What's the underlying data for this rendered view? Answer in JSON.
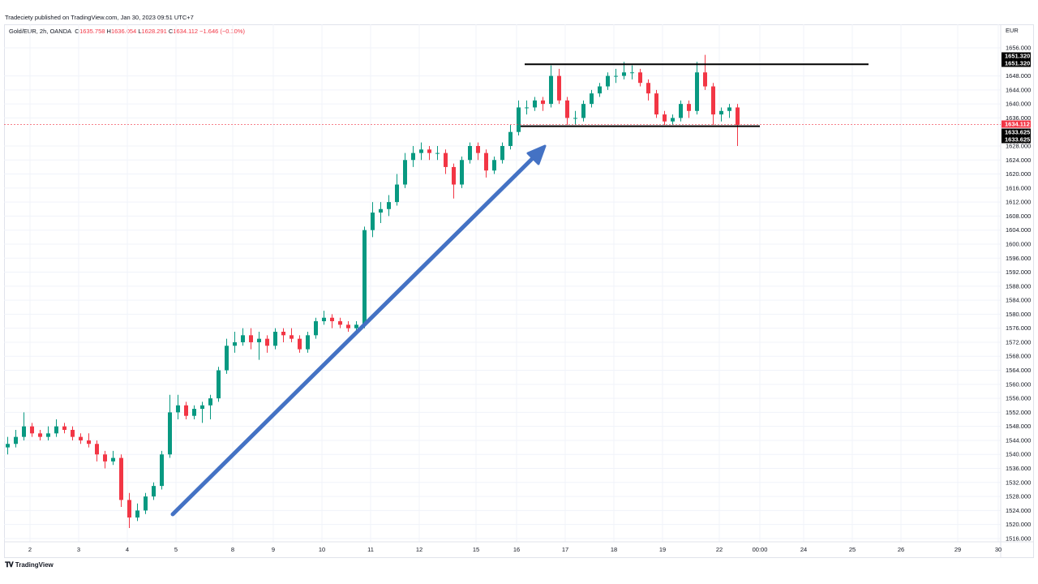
{
  "published": "Tradeciety published on TradingView.com, Jan 30, 2023 09:51 UTC+7",
  "legend": {
    "symbol": "Gold/EUR, 2h, OANDA",
    "o_label": "O",
    "o": "1635.758",
    "h_label": "H",
    "h": "1636.054",
    "l_label": "L",
    "l": "1628.291",
    "c_label": "C",
    "c": "1634.112",
    "change": "−1.646 (−0.10%)"
  },
  "footer": {
    "brand": "TradingView",
    "logo": "TV"
  },
  "chart_data": {
    "type": "candlestick",
    "currency": "EUR",
    "ylim": [
      1514,
      1659
    ],
    "y_ticks": [
      1516,
      1520,
      1524,
      1528,
      1532,
      1536,
      1540,
      1544,
      1548,
      1552,
      1556,
      1560,
      1564,
      1568,
      1572,
      1576,
      1580,
      1584,
      1588,
      1592,
      1596,
      1600,
      1604,
      1608,
      1612,
      1616,
      1620,
      1624,
      1628,
      1636,
      1640,
      1644,
      1648,
      1656
    ],
    "x_ticks": [
      "2",
      "3",
      "4",
      "5",
      "8",
      "9",
      "10",
      "11",
      "12",
      "15",
      "16",
      "17",
      "18",
      "19",
      "22",
      "00:00",
      "24",
      "25",
      "26",
      "29",
      "30"
    ],
    "colors": {
      "up": "#089981",
      "down": "#f23645",
      "arrow": "#4472c4",
      "level": "#000000"
    },
    "current_price": "1634.112",
    "levels": [
      {
        "label": "1651.320",
        "price": 1651.32
      },
      {
        "label": "1633.625",
        "price": 1633.625
      }
    ],
    "annotation": "uptrend-arrow",
    "candles": [
      [
        1542,
        1545,
        1540,
        1543
      ],
      [
        1543,
        1547,
        1542,
        1545
      ],
      [
        1545,
        1552,
        1544,
        1548
      ],
      [
        1548,
        1549,
        1545,
        1546
      ],
      [
        1546,
        1547,
        1544,
        1545
      ],
      [
        1545,
        1548,
        1544,
        1546
      ],
      [
        1546,
        1550,
        1545,
        1548
      ],
      [
        1548,
        1549,
        1546,
        1547
      ],
      [
        1547,
        1548,
        1544,
        1545
      ],
      [
        1545,
        1546,
        1543,
        1544
      ],
      [
        1544,
        1546,
        1542,
        1543
      ],
      [
        1543,
        1544,
        1538,
        1540
      ],
      [
        1540,
        1541,
        1536,
        1538
      ],
      [
        1538,
        1541,
        1537,
        1539
      ],
      [
        1539,
        1540,
        1525,
        1527
      ],
      [
        1527,
        1529,
        1519,
        1522
      ],
      [
        1522,
        1526,
        1521,
        1524
      ],
      [
        1524,
        1529,
        1523,
        1528
      ],
      [
        1528,
        1532,
        1527,
        1531
      ],
      [
        1531,
        1541,
        1530,
        1540
      ],
      [
        1540,
        1557,
        1539,
        1552
      ],
      [
        1552,
        1557,
        1550,
        1554
      ],
      [
        1554,
        1555,
        1550,
        1551
      ],
      [
        1551,
        1554,
        1550,
        1553
      ],
      [
        1553,
        1555,
        1549,
        1554
      ],
      [
        1554,
        1557,
        1550,
        1556
      ],
      [
        1556,
        1565,
        1555,
        1564
      ],
      [
        1564,
        1573,
        1563,
        1571
      ],
      [
        1571,
        1575,
        1569,
        1572
      ],
      [
        1572,
        1576,
        1571,
        1574
      ],
      [
        1574,
        1576,
        1570,
        1572
      ],
      [
        1572,
        1575,
        1567,
        1573
      ],
      [
        1573,
        1574,
        1569,
        1571
      ],
      [
        1571,
        1576,
        1570,
        1575
      ],
      [
        1575,
        1576,
        1572,
        1574
      ],
      [
        1574,
        1576,
        1572,
        1573
      ],
      [
        1573,
        1574,
        1569,
        1570
      ],
      [
        1570,
        1575,
        1569,
        1574
      ],
      [
        1574,
        1579,
        1573,
        1578
      ],
      [
        1578,
        1581,
        1577,
        1579
      ],
      [
        1579,
        1580,
        1576,
        1578
      ],
      [
        1578,
        1579,
        1576,
        1577
      ],
      [
        1577,
        1578,
        1575,
        1576
      ],
      [
        1576,
        1578,
        1575,
        1577
      ],
      [
        1577,
        1605,
        1576,
        1604
      ],
      [
        1604,
        1612,
        1602,
        1609
      ],
      [
        1609,
        1612,
        1606,
        1610
      ],
      [
        1610,
        1614,
        1608,
        1612
      ],
      [
        1612,
        1620,
        1611,
        1617
      ],
      [
        1617,
        1626,
        1616,
        1624
      ],
      [
        1624,
        1628,
        1622,
        1626
      ],
      [
        1626,
        1629,
        1624,
        1627
      ],
      [
        1627,
        1628,
        1624,
        1626
      ],
      [
        1626,
        1628,
        1624,
        1626
      ],
      [
        1626,
        1627,
        1620,
        1622
      ],
      [
        1622,
        1623,
        1613,
        1617
      ],
      [
        1617,
        1625,
        1616,
        1624
      ],
      [
        1624,
        1629,
        1623,
        1628
      ],
      [
        1628,
        1629,
        1624,
        1626
      ],
      [
        1626,
        1627,
        1619,
        1621
      ],
      [
        1621,
        1625,
        1620,
        1624
      ],
      [
        1624,
        1629,
        1623,
        1628
      ],
      [
        1628,
        1634,
        1627,
        1632
      ],
      [
        1632,
        1641,
        1631,
        1639
      ],
      [
        1639,
        1641,
        1637,
        1639
      ],
      [
        1639,
        1642,
        1638,
        1641
      ],
      [
        1641,
        1642,
        1638,
        1640
      ],
      [
        1640,
        1651,
        1639,
        1648
      ],
      [
        1648,
        1650,
        1640,
        1641
      ],
      [
        1641,
        1642,
        1634,
        1636
      ],
      [
        1636,
        1638,
        1634,
        1636
      ],
      [
        1636,
        1641,
        1635,
        1640
      ],
      [
        1640,
        1644,
        1639,
        1643
      ],
      [
        1643,
        1646,
        1642,
        1645
      ],
      [
        1645,
        1649,
        1644,
        1648
      ],
      [
        1648,
        1650,
        1646,
        1648
      ],
      [
        1648,
        1652,
        1647,
        1649
      ],
      [
        1649,
        1651,
        1647,
        1649
      ],
      [
        1649,
        1650,
        1645,
        1646
      ],
      [
        1646,
        1647,
        1641,
        1643
      ],
      [
        1643,
        1644,
        1636,
        1637
      ],
      [
        1637,
        1638,
        1634,
        1635
      ],
      [
        1635,
        1637,
        1634,
        1636
      ],
      [
        1636,
        1641,
        1635,
        1640
      ],
      [
        1640,
        1641,
        1636,
        1638
      ],
      [
        1638,
        1652,
        1637,
        1649
      ],
      [
        1649,
        1654,
        1644,
        1645
      ],
      [
        1645,
        1646,
        1634,
        1637
      ],
      [
        1637,
        1639,
        1635,
        1638
      ],
      [
        1638,
        1640,
        1636,
        1639
      ],
      [
        1639,
        1640,
        1628,
        1634
      ]
    ]
  }
}
